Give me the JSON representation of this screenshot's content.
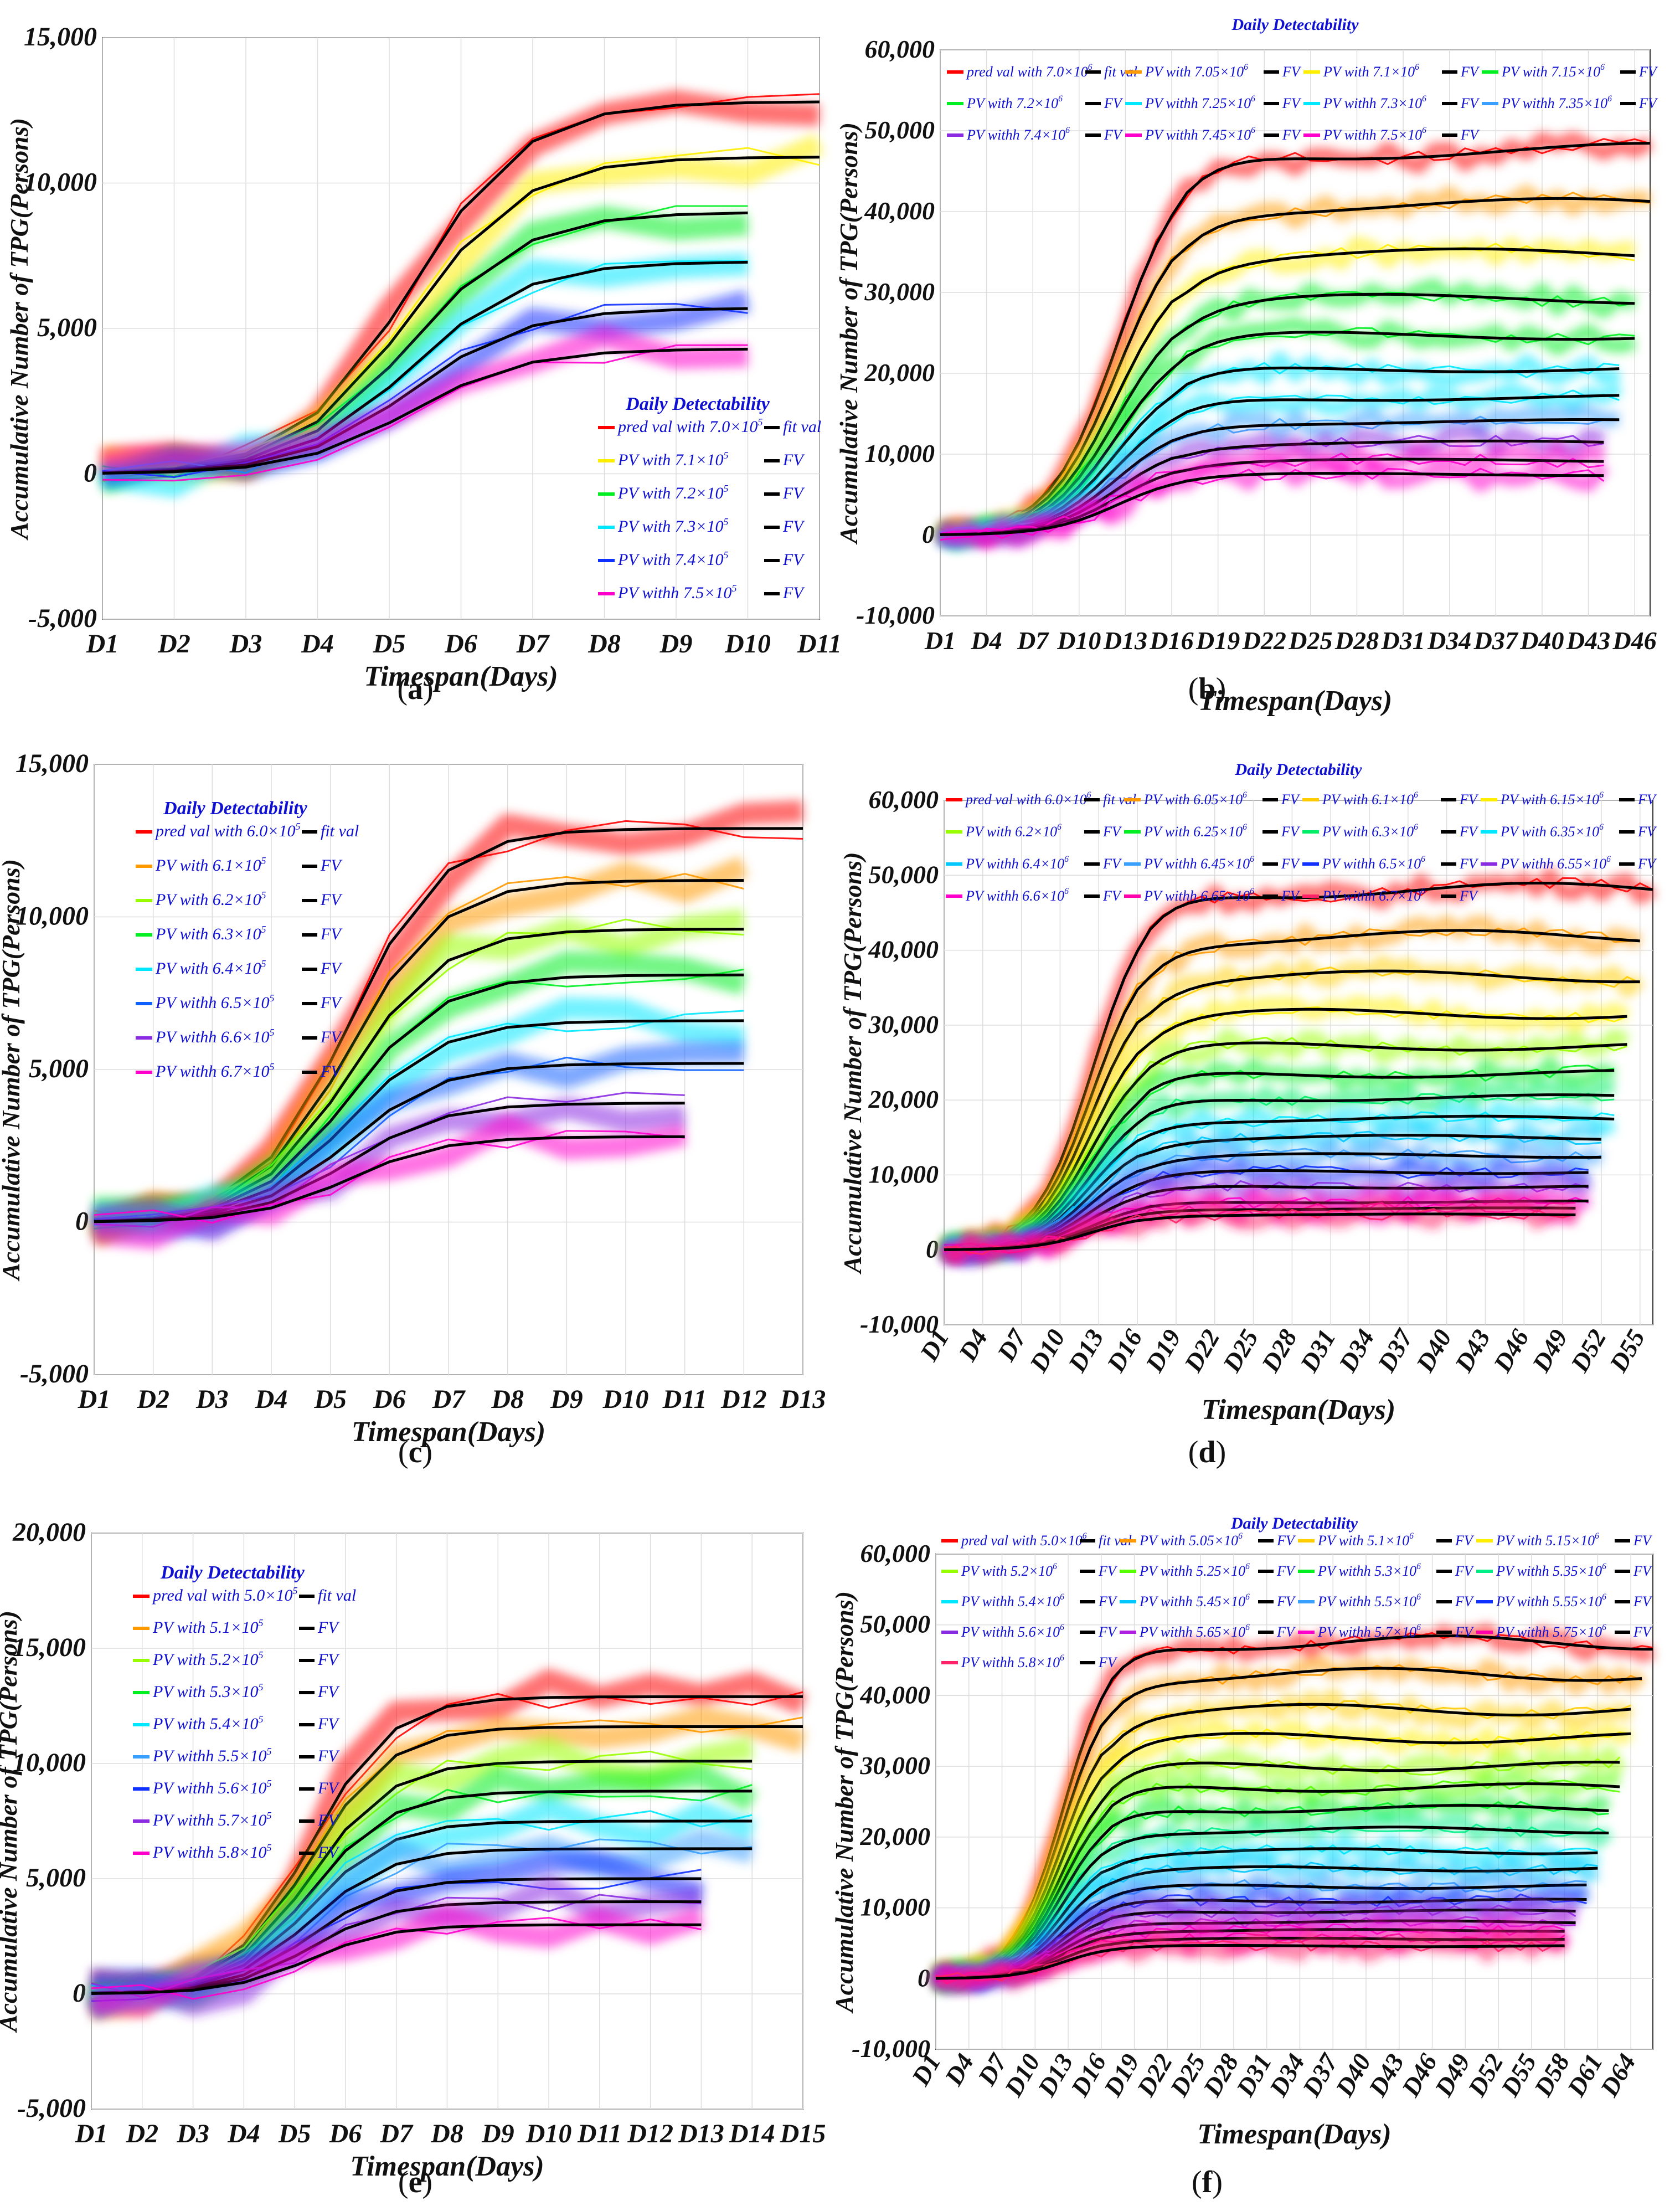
{
  "palette": [
    "#ff0000",
    "#ff9900",
    "#ffee00",
    "#99ff00",
    "#00ee22",
    "#00e5a0",
    "#00e8ff",
    "#3aa0ff",
    "#1030ff",
    "#8a2be2",
    "#ff00cc",
    "#ff2266"
  ],
  "fit_color": "#000000",
  "chart_data": [
    {
      "panel": "a",
      "caption_letter": "a",
      "type": "line",
      "title": "",
      "legend_title": "Daily Detectability",
      "legend_position": "bottom-right",
      "xlabel": "Timespan(Days)",
      "ylabel": "Accumulative Number of TPG(Persons)",
      "xticks": [
        "D1",
        "D2",
        "D3",
        "D4",
        "D5",
        "D6",
        "D7",
        "D8",
        "D9",
        "D10",
        "D11"
      ],
      "ylim": [
        -5000,
        15000
      ],
      "yticks": [
        {
          "v": -5000,
          "label": "-5,000"
        },
        {
          "v": 0,
          "label": "0"
        },
        {
          "v": 5000,
          "label": "5,000"
        },
        {
          "v": 10000,
          "label": "10,000"
        },
        {
          "v": 15000,
          "label": "15,000"
        }
      ],
      "legend_cols": 1,
      "fit_label_first": "fit val",
      "fit_label": "FV",
      "series": [
        {
          "name": "pred val with 7.0×10",
          "exp": "5",
          "color": "#ff0000",
          "color_idx": 0,
          "plateau": 12800,
          "k": 1.1,
          "length": 11
        },
        {
          "name": "PV with 7.1×10",
          "exp": "5",
          "color": "#ffee00",
          "color_idx": 2,
          "plateau": 10900,
          "k": 1.1,
          "length": 11
        },
        {
          "name": "PV with 7.2×10",
          "exp": "5",
          "color": "#00ee22",
          "color_idx": 4,
          "plateau": 9000,
          "k": 1.1,
          "length": 10
        },
        {
          "name": "PV with 7.3×10",
          "exp": "5",
          "color": "#00e8ff",
          "color_idx": 6,
          "plateau": 7300,
          "k": 1.1,
          "length": 10
        },
        {
          "name": "PV with 7.4×10",
          "exp": "5",
          "color": "#1030ff",
          "color_idx": 8,
          "plateau": 5700,
          "k": 1.1,
          "length": 10
        },
        {
          "name": "PV withh 7.5×10",
          "exp": "5",
          "color": "#ff00cc",
          "color_idx": 10,
          "plateau": 4300,
          "k": 1.1,
          "length": 10
        }
      ]
    },
    {
      "panel": "b",
      "caption_letter": "b",
      "type": "line",
      "title": "Daily Detectability",
      "legend_title": "",
      "legend_position": "top",
      "xlabel": "Timespan(Days)",
      "ylabel": "Accumulative Number of TPG(Persons)",
      "xticks": [
        "D1",
        "D4",
        "D7",
        "D10",
        "D13",
        "D16",
        "D19",
        "D22",
        "D25",
        "D28",
        "D31",
        "D34",
        "D37",
        "D40",
        "D43",
        "D46"
      ],
      "x_step": 3,
      "x_max_day": 47,
      "ylim": [
        -10000,
        60000
      ],
      "yticks": [
        {
          "v": -10000,
          "label": "-10,000"
        },
        {
          "v": 0,
          "label": "0"
        },
        {
          "v": 10000,
          "label": "10,000"
        },
        {
          "v": 20000,
          "label": "20,000"
        },
        {
          "v": 30000,
          "label": "30,000"
        },
        {
          "v": 40000,
          "label": "40,000"
        },
        {
          "v": 50000,
          "label": "50,000"
        },
        {
          "v": 60000,
          "label": "60,000"
        }
      ],
      "legend_cols": 4,
      "fit_label_first": "fit val",
      "fit_label": "FV",
      "series": [
        {
          "name": "pred val with 7.0×10",
          "exp": "6",
          "color": "#ff0000",
          "plateau": 47500,
          "length": 47
        },
        {
          "name": "PV with 7.05×10",
          "exp": "6",
          "color": "#ff9900",
          "plateau": 40800,
          "length": 47
        },
        {
          "name": "PV with 7.1×10",
          "exp": "6",
          "color": "#ffee00",
          "plateau": 34700,
          "length": 46
        },
        {
          "name": "PV with 7.15×10",
          "exp": "6",
          "color": "#00ee22",
          "plateau": 29200,
          "length": 46
        },
        {
          "name": "PV with 7.2×10",
          "exp": "6",
          "color": "#00ee22",
          "plateau": 24700,
          "length": 46
        },
        {
          "name": "PV withh 7.25×10",
          "exp": "6",
          "color": "#00e8ff",
          "plateau": 20600,
          "length": 45
        },
        {
          "name": "PV withh 7.3×10",
          "exp": "6",
          "color": "#00e8ff",
          "plateau": 17000,
          "length": 45
        },
        {
          "name": "PV withh 7.35×10",
          "exp": "6",
          "color": "#3aa0ff",
          "plateau": 14000,
          "length": 45
        },
        {
          "name": "PV withh 7.4×10",
          "exp": "6",
          "color": "#8a2be2",
          "plateau": 11400,
          "length": 44
        },
        {
          "name": "PV withh 7.45×10",
          "exp": "6",
          "color": "#ff00cc",
          "plateau": 9200,
          "length": 44
        },
        {
          "name": "PV withh 7.5×10",
          "exp": "6",
          "color": "#ff00cc",
          "plateau": 7500,
          "length": 44
        }
      ]
    },
    {
      "panel": "c",
      "caption_letter": "c",
      "type": "line",
      "title": "",
      "legend_title": "Daily Detectability",
      "legend_position": "top-left",
      "xlabel": "Timespan(Days)",
      "ylabel": "Accumulative Number of TPG(Persons)",
      "xticks": [
        "D1",
        "D2",
        "D3",
        "D4",
        "D5",
        "D6",
        "D7",
        "D8",
        "D9",
        "D10",
        "D11",
        "D12",
        "D13"
      ],
      "ylim": [
        -5000,
        15000
      ],
      "yticks": [
        {
          "v": -5000,
          "label": "-5,000"
        },
        {
          "v": 0,
          "label": "0"
        },
        {
          "v": 5000,
          "label": "5,000"
        },
        {
          "v": 10000,
          "label": "10,000"
        },
        {
          "v": 15000,
          "label": "15,000"
        }
      ],
      "legend_cols": 1,
      "fit_label_first": "fit val",
      "fit_label": "FV",
      "series": [
        {
          "name": "pred val with 6.0×10",
          "exp": "5",
          "color": "#ff0000",
          "plateau": 12900,
          "length": 13
        },
        {
          "name": "PV with 6.1×10",
          "exp": "5",
          "color": "#ff9900",
          "plateau": 11200,
          "length": 12
        },
        {
          "name": "PV with 6.2×10",
          "exp": "5",
          "color": "#99ff00",
          "plateau": 9600,
          "length": 12
        },
        {
          "name": "PV with 6.3×10",
          "exp": "5",
          "color": "#00ee22",
          "plateau": 8100,
          "length": 12
        },
        {
          "name": "PV with 6.4×10",
          "exp": "5",
          "color": "#00e8ff",
          "plateau": 6600,
          "length": 12
        },
        {
          "name": "PV withh 6.5×10",
          "exp": "5",
          "color": "#1060ff",
          "plateau": 5200,
          "length": 12
        },
        {
          "name": "PV withh 6.6×10",
          "exp": "5",
          "color": "#8a2be2",
          "plateau": 3900,
          "length": 11
        },
        {
          "name": "PV withh 6.7×10",
          "exp": "5",
          "color": "#ff00cc",
          "plateau": 2800,
          "length": 11
        }
      ]
    },
    {
      "panel": "d",
      "caption_letter": "d",
      "type": "line",
      "title": "Daily Detectability",
      "legend_title": "",
      "legend_position": "top",
      "xlabel": "Timespan(Days)",
      "ylabel": "Accumulative Number of TPG(Persons)",
      "xticks": [
        "D1",
        "D4",
        "D7",
        "D10",
        "D13",
        "D16",
        "D19",
        "D22",
        "D25",
        "D28",
        "D31",
        "D34",
        "D37",
        "D40",
        "D43",
        "D46",
        "D49",
        "D52",
        "D55"
      ],
      "x_step": 3,
      "x_max_day": 56,
      "ylim": [
        -10000,
        60000
      ],
      "yticks": [
        {
          "v": -10000,
          "label": "-10,000"
        },
        {
          "v": 0,
          "label": "0"
        },
        {
          "v": 10000,
          "label": "10,000"
        },
        {
          "v": 20000,
          "label": "20,000"
        },
        {
          "v": 30000,
          "label": "30,000"
        },
        {
          "v": 40000,
          "label": "40,000"
        },
        {
          "v": 50000,
          "label": "50,000"
        },
        {
          "v": 60000,
          "label": "60,000"
        }
      ],
      "legend_cols": 4,
      "fit_label_first": "fit val",
      "fit_label": "FV",
      "series": [
        {
          "name": "pred val with 6.0×10",
          "exp": "6",
          "color": "#ff0000",
          "plateau": 48000,
          "length": 56
        },
        {
          "name": "PV with 6.05×10",
          "exp": "6",
          "color": "#ff9900",
          "plateau": 41800,
          "length": 55
        },
        {
          "name": "PV with 6.1×10",
          "exp": "6",
          "color": "#ffcc00",
          "plateau": 36500,
          "length": 55
        },
        {
          "name": "PV with 6.15×10",
          "exp": "6",
          "color": "#ffee00",
          "plateau": 31500,
          "length": 54
        },
        {
          "name": "PV with 6.2×10",
          "exp": "6",
          "color": "#99ff00",
          "plateau": 27200,
          "length": 54
        },
        {
          "name": "PV with 6.25×10",
          "exp": "6",
          "color": "#00ee22",
          "plateau": 23500,
          "length": 53
        },
        {
          "name": "PV with 6.3×10",
          "exp": "6",
          "color": "#00ee66",
          "plateau": 20300,
          "length": 53
        },
        {
          "name": "PV with 6.35×10",
          "exp": "6",
          "color": "#00e8ff",
          "plateau": 17500,
          "length": 53
        },
        {
          "name": "PV withh 6.4×10",
          "exp": "6",
          "color": "#00c8ff",
          "plateau": 15000,
          "length": 52
        },
        {
          "name": "PV withh 6.45×10",
          "exp": "6",
          "color": "#3aa0ff",
          "plateau": 12600,
          "length": 52
        },
        {
          "name": "PV withh 6.5×10",
          "exp": "6",
          "color": "#1030ff",
          "plateau": 10400,
          "length": 51
        },
        {
          "name": "PV withh 6.55×10",
          "exp": "6",
          "color": "#8a2be2",
          "plateau": 8400,
          "length": 51
        },
        {
          "name": "PV withh 6.6×10",
          "exp": "6",
          "color": "#ff00cc",
          "plateau": 6400,
          "length": 51
        },
        {
          "name": "PV withh 6.65×10",
          "exp": "6",
          "color": "#ff00aa",
          "plateau": 5500,
          "length": 50
        },
        {
          "name": "PV withh 6.7×10",
          "exp": "6",
          "color": "#ff2266",
          "plateau": 4700,
          "length": 50
        }
      ]
    },
    {
      "panel": "e",
      "caption_letter": "e",
      "type": "line",
      "title": "",
      "legend_title": "Daily Detectability",
      "legend_position": "top-left",
      "xlabel": "Timespan(Days)",
      "ylabel": "Accumulative Number of TPG(Persons)",
      "xticks": [
        "D1",
        "D2",
        "D3",
        "D4",
        "D5",
        "D6",
        "D7",
        "D8",
        "D9",
        "D10",
        "D11",
        "D12",
        "D13",
        "D14",
        "D15"
      ],
      "ylim": [
        -5000,
        20000
      ],
      "yticks": [
        {
          "v": -5000,
          "label": "-5,000"
        },
        {
          "v": 0,
          "label": "0"
        },
        {
          "v": 5000,
          "label": "5,000"
        },
        {
          "v": 10000,
          "label": "10,000"
        },
        {
          "v": 15000,
          "label": "15,000"
        },
        {
          "v": 20000,
          "label": "20,000"
        }
      ],
      "legend_cols": 1,
      "fit_label_first": "fit val",
      "fit_label": "FV",
      "series": [
        {
          "name": "pred val with 5.0×10",
          "exp": "5",
          "color": "#ff0000",
          "plateau": 12900,
          "length": 15
        },
        {
          "name": "PV with 5.1×10",
          "exp": "5",
          "color": "#ff9900",
          "plateau": 11600,
          "length": 15
        },
        {
          "name": "PV with 5.2×10",
          "exp": "5",
          "color": "#99ff00",
          "plateau": 10100,
          "length": 14
        },
        {
          "name": "PV with 5.3×10",
          "exp": "5",
          "color": "#00ee22",
          "plateau": 8800,
          "length": 14
        },
        {
          "name": "PV with 5.4×10",
          "exp": "5",
          "color": "#00e8ff",
          "plateau": 7500,
          "length": 14
        },
        {
          "name": "PV withh 5.5×10",
          "exp": "5",
          "color": "#3aa0ff",
          "plateau": 6300,
          "length": 14
        },
        {
          "name": "PV withh 5.6×10",
          "exp": "5",
          "color": "#1030ff",
          "plateau": 5000,
          "length": 13
        },
        {
          "name": "PV withh 5.7×10",
          "exp": "5",
          "color": "#8a2be2",
          "plateau": 4000,
          "length": 13
        },
        {
          "name": "PV withh 5.8×10",
          "exp": "5",
          "color": "#ff00cc",
          "plateau": 3000,
          "length": 13
        }
      ]
    },
    {
      "panel": "f",
      "caption_letter": "f",
      "type": "line",
      "title": "Daily Detectability",
      "legend_title": "",
      "legend_position": "top",
      "xlabel": "Timespan(Days)",
      "ylabel": "Accumulative Number of TPG(Persons)",
      "xticks": [
        "D1",
        "D4",
        "D7",
        "D10",
        "D13",
        "D16",
        "D19",
        "D22",
        "D25",
        "D28",
        "D31",
        "D34",
        "D37",
        "D40",
        "D43",
        "D46",
        "D49",
        "D52",
        "D55",
        "D58",
        "D61",
        "D64"
      ],
      "x_step": 3,
      "x_max_day": 66,
      "ylim": [
        -10000,
        60000
      ],
      "yticks": [
        {
          "v": -10000,
          "label": "-10,000"
        },
        {
          "v": 0,
          "label": "0"
        },
        {
          "v": 10000,
          "label": "10,000"
        },
        {
          "v": 20000,
          "label": "20,000"
        },
        {
          "v": 30000,
          "label": "30,000"
        },
        {
          "v": 40000,
          "label": "40,000"
        },
        {
          "v": 50000,
          "label": "50,000"
        },
        {
          "v": 60000,
          "label": "60,000"
        }
      ],
      "legend_cols": 4,
      "fit_label_first": "fit val",
      "fit_label": "FV",
      "series": [
        {
          "name": "pred val with 5.0×10",
          "exp": "6",
          "color": "#ff0000",
          "plateau": 47500,
          "length": 66
        },
        {
          "name": "PV with 5.05×10",
          "exp": "6",
          "color": "#ff9900",
          "plateau": 43000,
          "length": 65
        },
        {
          "name": "PV with 5.1×10",
          "exp": "6",
          "color": "#ffcc00",
          "plateau": 38000,
          "length": 64
        },
        {
          "name": "PV with 5.15×10",
          "exp": "6",
          "color": "#ffee00",
          "plateau": 34000,
          "length": 64
        },
        {
          "name": "PV with 5.2×10",
          "exp": "6",
          "color": "#99ff00",
          "plateau": 30000,
          "length": 63
        },
        {
          "name": "PV withh 5.25×10",
          "exp": "6",
          "color": "#55ff00",
          "plateau": 27000,
          "length": 63
        },
        {
          "name": "PV withh 5.3×10",
          "exp": "6",
          "color": "#00ee22",
          "plateau": 24000,
          "length": 62
        },
        {
          "name": "PV withh 5.35×10",
          "exp": "6",
          "color": "#00ee88",
          "plateau": 21000,
          "length": 62
        },
        {
          "name": "PV withh 5.4×10",
          "exp": "6",
          "color": "#00e8ff",
          "plateau": 18000,
          "length": 61
        },
        {
          "name": "PV withh 5.45×10",
          "exp": "6",
          "color": "#00c8ff",
          "plateau": 15500,
          "length": 61
        },
        {
          "name": "PV withh 5.5×10",
          "exp": "6",
          "color": "#3aa0ff",
          "plateau": 13000,
          "length": 60
        },
        {
          "name": "PV withh 5.55×10",
          "exp": "6",
          "color": "#1030ff",
          "plateau": 11000,
          "length": 60
        },
        {
          "name": "PV withh 5.6×10",
          "exp": "6",
          "color": "#8a2be2",
          "plateau": 9500,
          "length": 59
        },
        {
          "name": "PV withh 5.65×10",
          "exp": "6",
          "color": "#b020e0",
          "plateau": 8000,
          "length": 59
        },
        {
          "name": "PV withh 5.7×10",
          "exp": "6",
          "color": "#ff00cc",
          "plateau": 6800,
          "length": 58
        },
        {
          "name": "PV withh 5.75×10",
          "exp": "6",
          "color": "#ff00aa",
          "plateau": 5600,
          "length": 58
        },
        {
          "name": "PV withh 5.8×10",
          "exp": "6",
          "color": "#ff2266",
          "plateau": 4600,
          "length": 58
        }
      ]
    }
  ]
}
